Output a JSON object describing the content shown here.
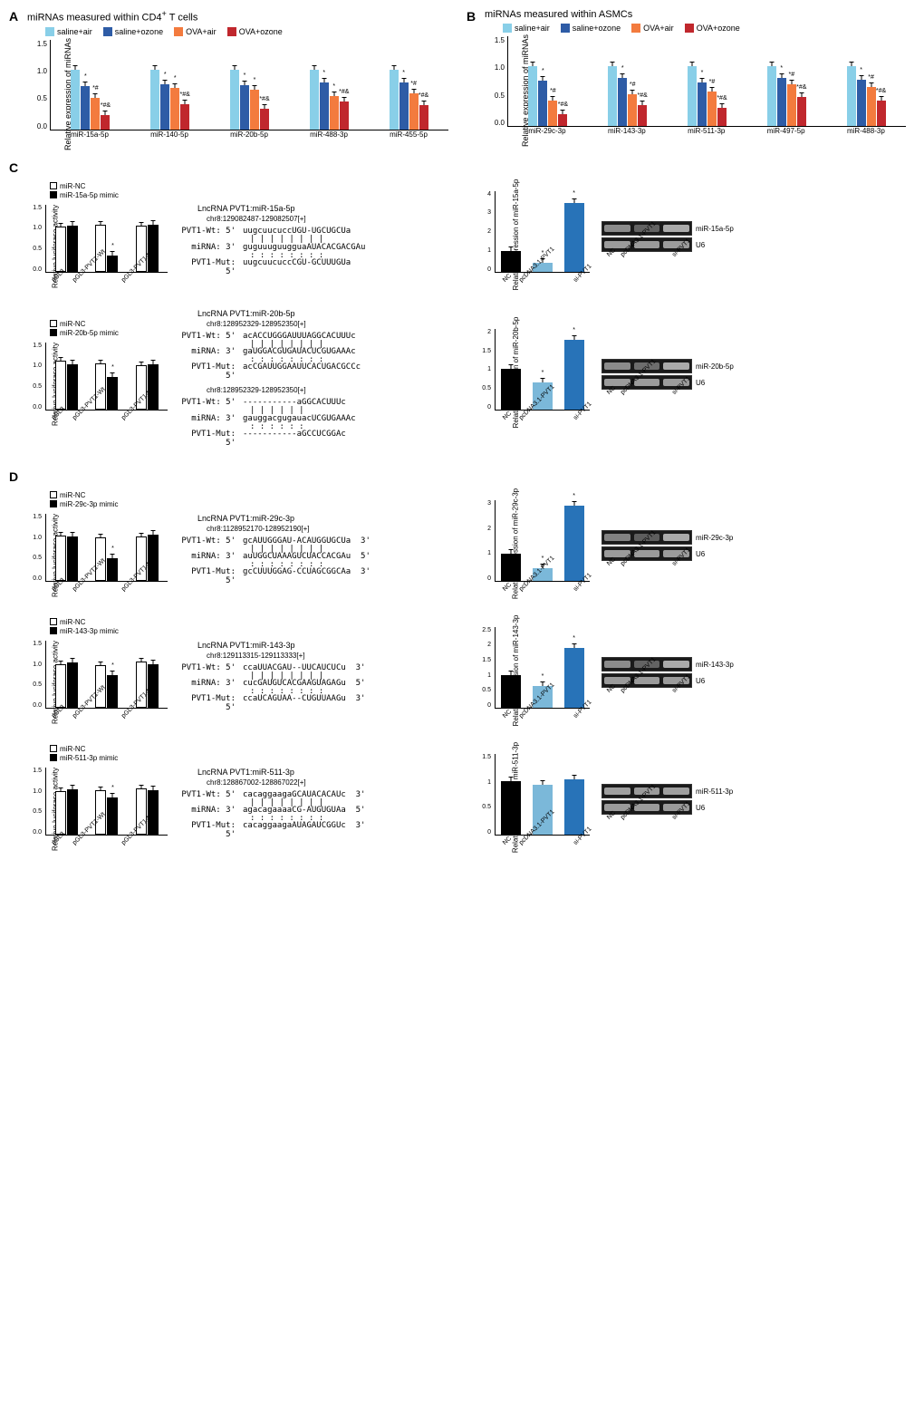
{
  "colors": {
    "saline_air": "#89cfe8",
    "saline_ozone": "#2e5ca6",
    "ova_air": "#f37b3e",
    "ova_ozone": "#c0272d",
    "mir_nc": "#ffffff",
    "mir_mimic": "#000000",
    "nc": "#000000",
    "pcdna": "#7bb8d9",
    "sipvt1": "#2873b8"
  },
  "panelA": {
    "label": "A",
    "title": "miRNAs measured within CD4+ T cells",
    "legend": [
      "saline+air",
      "saline+ozone",
      "OVA+air",
      "OVA+ozone"
    ],
    "ylabel": "Relative expression of miRNAs",
    "ylim": [
      0,
      1.5
    ],
    "ystep": 0.5,
    "categories": [
      "miR-15a-5p",
      "miR-140-5p",
      "miR-20b-5p",
      "miR-488-3p",
      "miR-455-5p"
    ],
    "data": [
      [
        1.0,
        0.72,
        0.52,
        0.24
      ],
      [
        1.0,
        0.76,
        0.69,
        0.42
      ],
      [
        1.0,
        0.73,
        0.66,
        0.35
      ],
      [
        1.0,
        0.79,
        0.55,
        0.46
      ],
      [
        1.0,
        0.78,
        0.6,
        0.41
      ]
    ],
    "sig": [
      [
        "",
        "*",
        "*#",
        "*#&"
      ],
      [
        "",
        "*",
        "*",
        "*#&"
      ],
      [
        "",
        "*",
        "*",
        "*#&"
      ],
      [
        "",
        "*",
        "*",
        "*#&"
      ],
      [
        "",
        "*",
        "*#",
        "*#&"
      ]
    ]
  },
  "panelB": {
    "label": "B",
    "title": "miRNAs measured within ASMCs",
    "legend": [
      "saline+air",
      "saline+ozone",
      "OVA+air",
      "OVA+ozone"
    ],
    "ylabel": "Relative expression of miRNAs",
    "ylim": [
      0,
      1.5
    ],
    "ystep": 0.5,
    "categories": [
      "miR-29c-3p",
      "miR-143-3p",
      "miR-511-3p",
      "miR-497-5p",
      "miR-488-3p"
    ],
    "data": [
      [
        1.0,
        0.76,
        0.42,
        0.19
      ],
      [
        1.0,
        0.8,
        0.53,
        0.35
      ],
      [
        1.0,
        0.72,
        0.58,
        0.31
      ],
      [
        1.0,
        0.8,
        0.7,
        0.48
      ],
      [
        1.0,
        0.78,
        0.65,
        0.42
      ]
    ],
    "sig": [
      [
        "",
        "*",
        "*#",
        "*#&"
      ],
      [
        "",
        "*",
        "*#",
        "*#&"
      ],
      [
        "",
        "*",
        "*#",
        "*#&"
      ],
      [
        "",
        "*",
        "*#",
        "*#&"
      ],
      [
        "",
        "*",
        "*#",
        "*#&"
      ]
    ]
  },
  "panelC": {
    "label": "C",
    "rows": [
      {
        "mirna": "miR-15a-5p",
        "luc_legend": [
          "miR-NC",
          "miR-15a-5p mimic"
        ],
        "luc_cats": [
          "pGL3",
          "pGL3-PVT1-Wt",
          "pGL3-PVT1-Mut"
        ],
        "luc_data": [
          [
            1.0,
            1.02
          ],
          [
            1.05,
            0.35
          ],
          [
            1.02,
            1.05
          ]
        ],
        "luc_sig": [
          [
            "",
            ""
          ],
          [
            "",
            "*"
          ],
          [
            "",
            ""
          ]
        ],
        "luc_ylim": [
          0,
          1.5
        ],
        "luc_ystep": 0.5,
        "seq_title": "LncRNA PVT1:miR-15a-5p",
        "seq_loc": "chr8:129082487-129082507[+]",
        "seq_wt": "uugcuucuccUGU-UGCUGCUa",
        "seq_mir": "guguuuguugguaAUACACGACGAu",
        "seq_mut": "uugcuucuccCGU-GCUUUGUa",
        "expr_ylabel": "Relative expression of miR-15a-5p",
        "expr_cats": [
          "NC",
          "pcDNA3.1-PVT1",
          "si-PVT1"
        ],
        "expr_data": [
          1.0,
          0.42,
          3.4
        ],
        "expr_sig": [
          "",
          "*",
          "*"
        ],
        "expr_ylim": [
          0,
          4
        ],
        "expr_ystep": 1,
        "gel_label": "miR-15a-5p",
        "gel_bands": [
          0.7,
          0.3,
          1.0
        ]
      },
      {
        "mirna": "miR-20b-5p",
        "luc_legend": [
          "miR-NC",
          "miR-20b-5p mimic"
        ],
        "luc_cats": [
          "pGL3",
          "pGL3-PVT1-Wt",
          "pGL3-PVT1-Mut"
        ],
        "luc_data": [
          [
            1.08,
            1.0
          ],
          [
            1.03,
            0.72
          ],
          [
            0.98,
            1.0
          ]
        ],
        "luc_sig": [
          [
            "",
            ""
          ],
          [
            "",
            "*"
          ],
          [
            "",
            ""
          ]
        ],
        "luc_ylim": [
          0,
          1.5
        ],
        "luc_ystep": 0.5,
        "seq_title": "LncRNA PVT1:miR-20b-5p",
        "seq_loc": "chr8:128952329-128952350[+]",
        "seq_wt": "acACCUGGGAUUUAGGCACUUUc",
        "seq_mir": "gaUGGACGUGAUACUCGUGAAAc",
        "seq_mut": "acCGAUUGGAAUUCACUGACGCCc",
        "seq_loc2": "chr8:128952329-128952350[+]",
        "seq_wt2": "-----------aGGCACUUUc",
        "seq_mir2": "gauggacgugauacUCGUGAAAc",
        "seq_mut2": "-----------aGCCUCGGAc",
        "expr_ylabel": "Relative expression of miR-20b-5p",
        "expr_cats": [
          "NC",
          "pcDNA3.1-PVT1",
          "si-PVT1"
        ],
        "expr_data": [
          1.0,
          0.68,
          1.72
        ],
        "expr_sig": [
          "",
          "*",
          "*"
        ],
        "expr_ylim": [
          0,
          2.0
        ],
        "expr_ystep": 0.5,
        "gel_label": "miR-20b-5p",
        "gel_bands": [
          0.7,
          0.4,
          1.0
        ]
      }
    ]
  },
  "panelD": {
    "label": "D",
    "rows": [
      {
        "mirna": "miR-29c-3p",
        "luc_legend": [
          "miR-NC",
          "miR-29c-3p mimic"
        ],
        "luc_cats": [
          "pGL3",
          "pGL3-PVT1-Wt",
          "pGL3-PVT1-Mut"
        ],
        "luc_data": [
          [
            1.02,
            1.0
          ],
          [
            0.98,
            0.5
          ],
          [
            1.0,
            1.03
          ]
        ],
        "luc_sig": [
          [
            "",
            ""
          ],
          [
            "",
            "*"
          ],
          [
            "",
            ""
          ]
        ],
        "luc_ylim": [
          0,
          1.5
        ],
        "luc_ystep": 0.5,
        "seq_title": "LncRNA PVT1:miR-29c-3p",
        "seq_loc": "chr8:1128952170-128952190[+]",
        "seq_wt": "gcAUUGGGAU-ACAUGGUGCUa  3'",
        "seq_mir": "auUGGCUAAAGUCUACCACGAu  5'",
        "seq_mut": "gcCUUUGGAG-CCUAGCGGCAa  3'",
        "expr_ylabel": "Relative expression of miR-29c-3p",
        "expr_cats": [
          "NC",
          "pcDNA3.1-PVT1",
          "si-PVT1"
        ],
        "expr_data": [
          1.0,
          0.48,
          2.78
        ],
        "expr_sig": [
          "",
          "*",
          "*"
        ],
        "expr_ylim": [
          0,
          3
        ],
        "expr_ystep": 1,
        "gel_label": "miR-29c-3p",
        "gel_bands": [
          0.6,
          0.25,
          1.0
        ]
      },
      {
        "mirna": "miR-143-3p",
        "luc_legend": [
          "miR-NC",
          "miR-143-3p mimic"
        ],
        "luc_cats": [
          "pGL3",
          "pGL3-PVT1-Wt",
          "pGL3-PVT1-Mut"
        ],
        "luc_data": [
          [
            0.97,
            1.02
          ],
          [
            0.95,
            0.72
          ],
          [
            1.04,
            0.97
          ]
        ],
        "luc_sig": [
          [
            "",
            ""
          ],
          [
            "",
            "*"
          ],
          [
            "",
            ""
          ]
        ],
        "luc_ylim": [
          0,
          1.5
        ],
        "luc_ystep": 0.5,
        "seq_title": "LncRNA PVT1:miR-143-3p",
        "seq_loc": "chr8:129113315-129113333[+]",
        "seq_wt": "ccaUUACGAU--UUCAUCUCu  3'",
        "seq_mir": "cucGAUGUCACGAAGUAGAGu  5'",
        "seq_mut": "ccaUCAGUAA--CUGUUAAGu  3'",
        "expr_ylabel": "Relative expression of miR-143-3p",
        "expr_cats": [
          "NC",
          "pcDNA3.1-PVT1",
          "si-PVT1"
        ],
        "expr_data": [
          1.0,
          0.68,
          1.85
        ],
        "expr_sig": [
          "",
          "*",
          "*"
        ],
        "expr_ylim": [
          0,
          2.5
        ],
        "expr_ystep": 0.5,
        "gel_label": "miR-143-3p",
        "gel_bands": [
          0.7,
          0.3,
          1.0
        ]
      },
      {
        "mirna": "miR-511-3p",
        "luc_legend": [
          "miR-NC",
          "miR-511-3p mimic"
        ],
        "luc_cats": [
          "pGL3",
          "pGL3-PVT1-Wt",
          "pGL3-PVT1-Mut"
        ],
        "luc_data": [
          [
            0.98,
            1.02
          ],
          [
            0.99,
            0.82
          ],
          [
            1.04,
            1.0
          ]
        ],
        "luc_sig": [
          [
            "",
            ""
          ],
          [
            "",
            "*"
          ],
          [
            "",
            ""
          ]
        ],
        "luc_ylim": [
          0,
          1.5
        ],
        "luc_ystep": 0.5,
        "seq_title": "LncRNA PVT1:miR-511-3p",
        "seq_loc": "chr8:128867002-128867022[+]",
        "seq_wt": "cacaggaagaGCAUACACAUc  3'",
        "seq_mir": "agacagaaaaCG-AUGUGUAa  5'",
        "seq_mut": "cacaggaagaAUAGAUCGGUc  3'",
        "expr_ylabel": "Relative expression of miR-511-3p",
        "expr_cats": [
          "NC",
          "pcDNA3.1-PVT1",
          "si-PVT1"
        ],
        "expr_data": [
          1.0,
          0.92,
          1.02
        ],
        "expr_sig": [
          "",
          "",
          ""
        ],
        "expr_ylim": [
          0,
          1.5
        ],
        "expr_ystep": 0.5,
        "gel_label": "miR-511-3p",
        "gel_bands": [
          0.9,
          0.85,
          0.9
        ]
      }
    ]
  },
  "common": {
    "luc_ylabel": "Relative luciferase activity",
    "gel_xlabels": [
      "NC",
      "pcDNA3.1-PVT1",
      "si-PVT1"
    ],
    "u6": "U6",
    "seq_labels": [
      "PVT1-Wt: 5'",
      "miRNA: 3'",
      "PVT1-Mut: 5'"
    ]
  }
}
